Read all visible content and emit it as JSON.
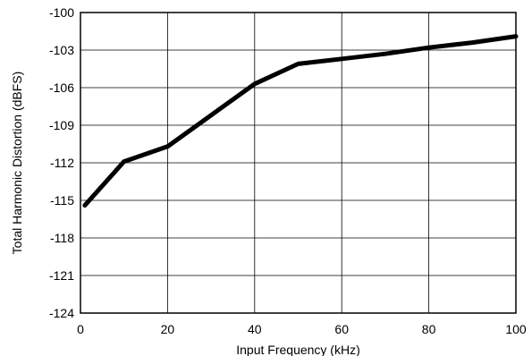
{
  "chart_data": {
    "type": "line",
    "title": "",
    "xlabel": "Input Frequency (kHz)",
    "ylabel": "Total Harmonic Distortion (dBFS)",
    "xlim": [
      0,
      100
    ],
    "ylim": [
      -124,
      -100
    ],
    "xticks": [
      0,
      20,
      40,
      60,
      80,
      100
    ],
    "yticks": [
      -124,
      -121,
      -118,
      -115,
      -112,
      -109,
      -106,
      -103,
      -100
    ],
    "x_tick_labels": [
      "0",
      "20",
      "40",
      "60",
      "80",
      "100"
    ],
    "y_tick_labels": [
      "-124",
      "-121",
      "-118",
      "-115",
      "-112",
      "-109",
      "-106",
      "-103",
      "-100"
    ],
    "grid": true,
    "series": [
      {
        "x": [
          1,
          10,
          20,
          30,
          40,
          50,
          60,
          70,
          80,
          90,
          100
        ],
        "values": [
          -115.4,
          -111.9,
          -110.7,
          -108.2,
          -105.7,
          -104.1,
          -103.7,
          -103.3,
          -102.8,
          -102.4,
          -101.9
        ]
      }
    ],
    "colors": {
      "line": "#000000",
      "grid": "#000000",
      "background": "#ffffff"
    }
  }
}
